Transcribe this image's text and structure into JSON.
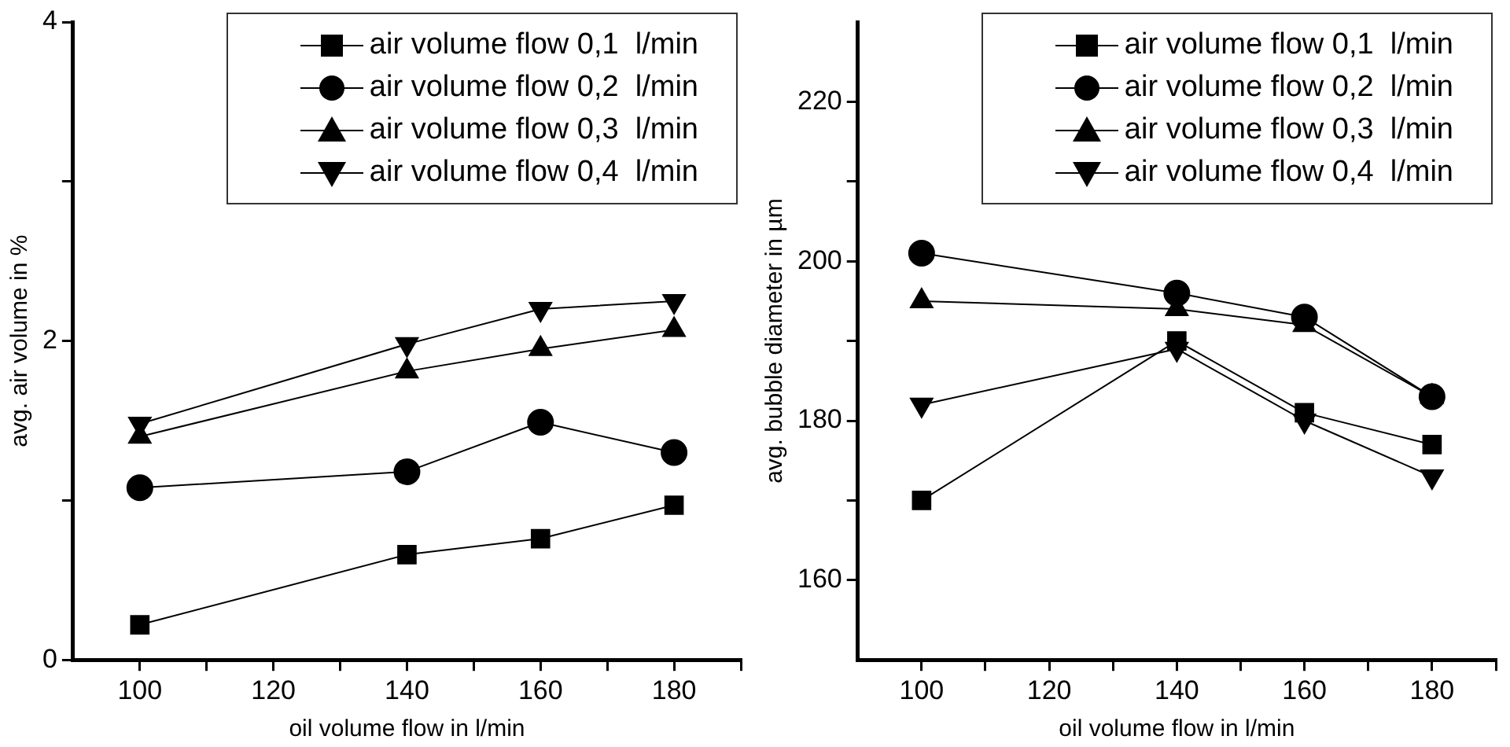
{
  "chart_data": [
    {
      "type": "line",
      "xlabel": "oil volume flow in l/min",
      "ylabel": "avg. air volume in %",
      "x": [
        100,
        140,
        160,
        180
      ],
      "xlim": [
        90,
        190
      ],
      "xticks": [
        100,
        {
          "value": 110,
          "label": null
        },
        120,
        {
          "value": 130,
          "label": null
        },
        140,
        {
          "value": 150,
          "label": null
        },
        160,
        {
          "value": 170,
          "label": null
        },
        180,
        {
          "value": 190,
          "label": null
        }
      ],
      "ylim": [
        0,
        4
      ],
      "yticks": [
        0,
        {
          "value": 1,
          "label": null
        },
        2,
        {
          "value": 3,
          "label": null
        },
        4
      ],
      "legend": "top right",
      "line_style": "solid",
      "series": [
        {
          "name": "air volume flow 0,1  l/min",
          "color": "#000000",
          "marker": "square",
          "values": [
            0.22,
            0.66,
            0.76,
            0.97
          ]
        },
        {
          "name": "air volume flow 0,2  l/min",
          "color": "#000000",
          "marker": "circle",
          "values": [
            1.08,
            1.18,
            1.49,
            1.3
          ]
        },
        {
          "name": "air volume flow 0,3  l/min",
          "color": "#000000",
          "marker": "triangle",
          "values": [
            1.4,
            1.81,
            1.95,
            2.07
          ]
        },
        {
          "name": "air volume flow 0,4  l/min",
          "color": "#000000",
          "marker": "triangle-down",
          "values": [
            1.48,
            1.98,
            2.2,
            2.25
          ]
        }
      ]
    },
    {
      "type": "line",
      "xlabel": "oil volume flow in l/min",
      "ylabel": "avg. bubble diameter in µm",
      "x": [
        100,
        140,
        160,
        180
      ],
      "xlim": [
        90,
        190
      ],
      "xticks": [
        100,
        {
          "value": 110,
          "label": null
        },
        120,
        {
          "value": 130,
          "label": null
        },
        140,
        {
          "value": 150,
          "label": null
        },
        160,
        {
          "value": 170,
          "label": null
        },
        180,
        {
          "value": 190,
          "label": null
        }
      ],
      "ylim": [
        150,
        230
      ],
      "yticks": [
        160,
        {
          "value": 170,
          "label": null
        },
        180,
        {
          "value": 190,
          "label": null
        },
        200,
        {
          "value": 210,
          "label": null
        },
        220
      ],
      "legend": "top right",
      "line_style": "solid",
      "series": [
        {
          "name": "air volume flow 0,1  l/min",
          "color": "#000000",
          "marker": "square",
          "values": [
            170,
            190,
            181,
            177
          ]
        },
        {
          "name": "air volume flow 0,2  l/min",
          "color": "#000000",
          "marker": "circle",
          "values": [
            201,
            196,
            193,
            183
          ]
        },
        {
          "name": "air volume flow 0,3  l/min",
          "color": "#000000",
          "marker": "triangle",
          "values": [
            195,
            194,
            192,
            183
          ]
        },
        {
          "name": "air volume flow 0,4  l/min",
          "color": "#000000",
          "marker": "triangle-down",
          "values": [
            182,
            189,
            180,
            173
          ]
        }
      ]
    }
  ]
}
